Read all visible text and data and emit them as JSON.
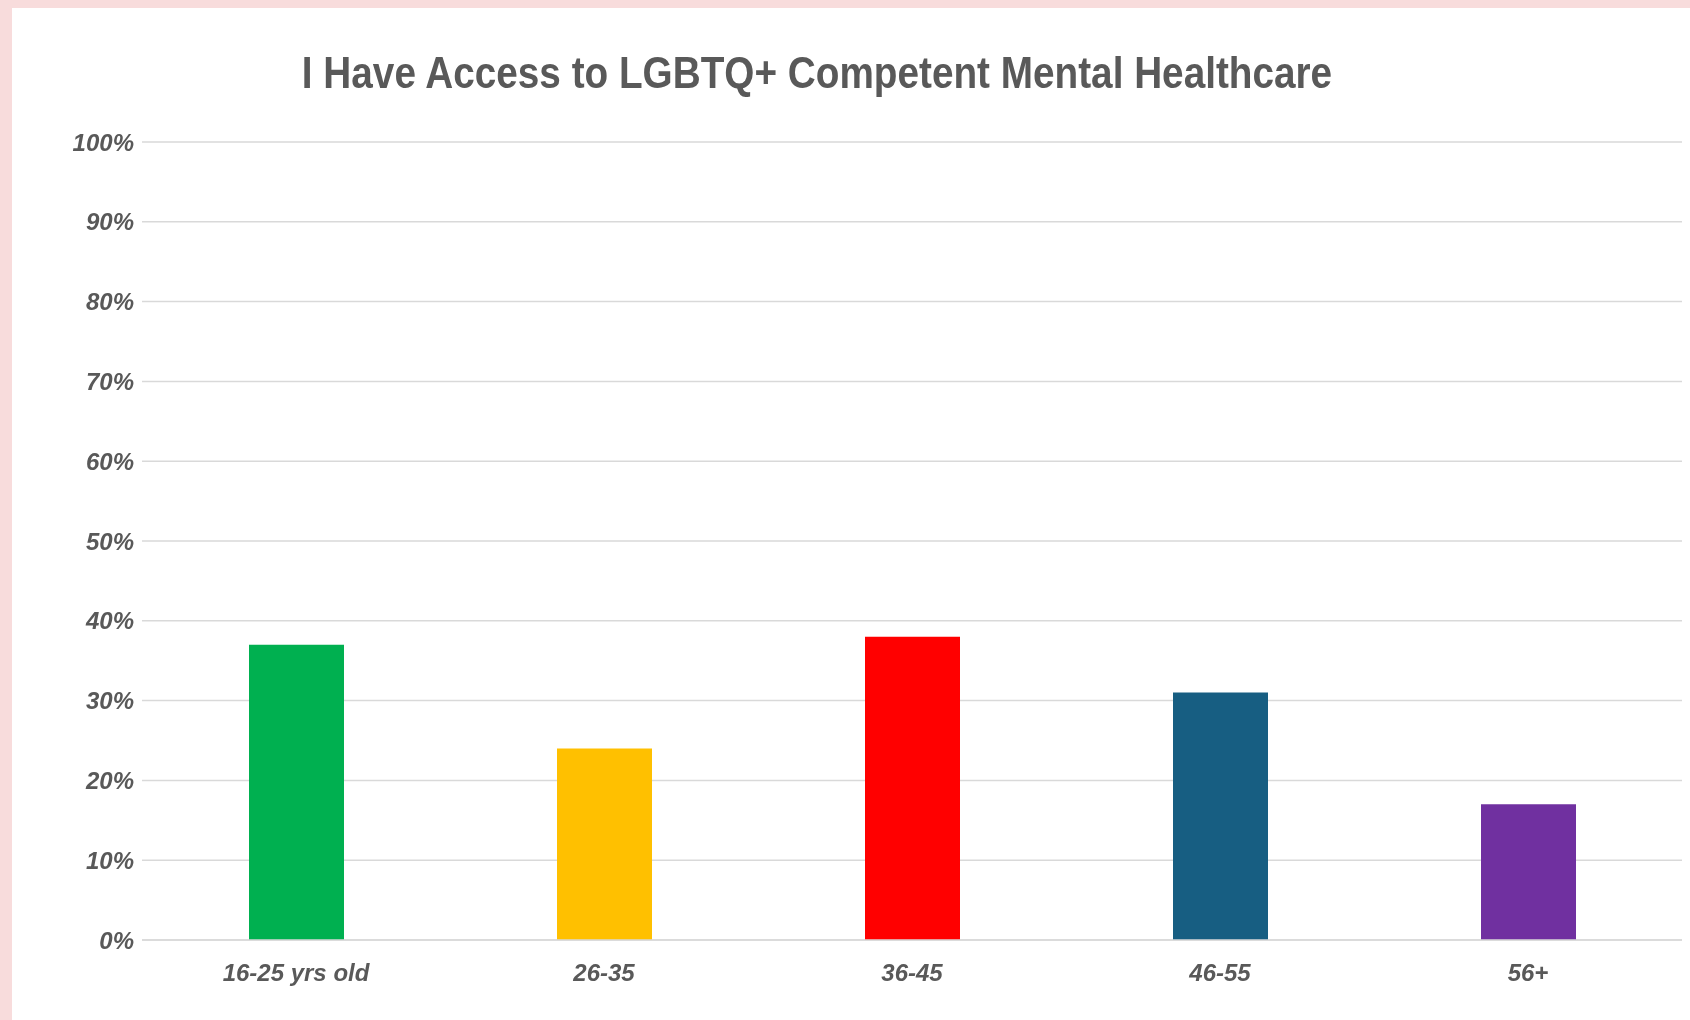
{
  "chart_data": {
    "type": "bar",
    "title": "I Have Access to LGBTQ+ Competent Mental Healthcare",
    "categories": [
      "16-25 yrs old",
      "26-35",
      "36-45",
      "46-55",
      "56+"
    ],
    "values": [
      37,
      24,
      38,
      31,
      17
    ],
    "colors": [
      "#00b050",
      "#ffc000",
      "#ff0000",
      "#175e82",
      "#7030a0"
    ],
    "ylim": [
      0,
      100
    ],
    "yticks": [
      {
        "value": 0,
        "label": "0%"
      },
      {
        "value": 10,
        "label": "10%"
      },
      {
        "value": 20,
        "label": "20%"
      },
      {
        "value": 30,
        "label": "30%"
      },
      {
        "value": 40,
        "label": "40%"
      },
      {
        "value": 50,
        "label": "50%"
      },
      {
        "value": 60,
        "label": "60%"
      },
      {
        "value": 70,
        "label": "70%"
      },
      {
        "value": 80,
        "label": "80%"
      },
      {
        "value": 90,
        "label": "90%"
      },
      {
        "value": 100,
        "label": "100%"
      }
    ],
    "grid": "y",
    "legend": false
  }
}
